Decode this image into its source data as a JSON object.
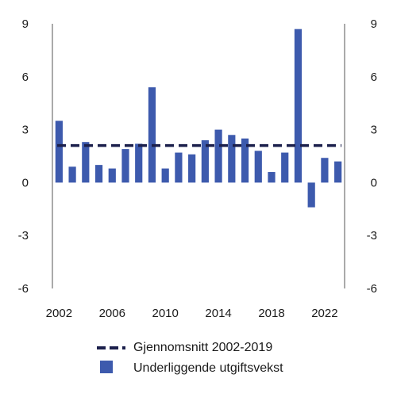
{
  "chart_data": {
    "type": "bar",
    "categories": [
      "2002",
      "2003",
      "2004",
      "2005",
      "2006",
      "2007",
      "2008",
      "2009",
      "2010",
      "2011",
      "2012",
      "2013",
      "2014",
      "2015",
      "2016",
      "2017",
      "2018",
      "2019",
      "2020",
      "2021",
      "2022",
      "2023"
    ],
    "series": [
      {
        "name": "Underliggende utgiftsvekst",
        "type": "bar",
        "color": "#3d5aad",
        "values": [
          3.5,
          0.9,
          2.3,
          1.0,
          0.8,
          1.9,
          2.2,
          5.4,
          0.8,
          1.7,
          1.6,
          2.4,
          3.0,
          2.7,
          2.5,
          1.8,
          0.6,
          1.7,
          8.7,
          -1.4,
          1.4,
          1.2
        ]
      },
      {
        "name": "Gjennomsnitt 2002-2019",
        "type": "line",
        "style": "dashed",
        "color": "#1b1f4b",
        "value": 2.1
      }
    ],
    "ylim": [
      -6,
      9
    ],
    "yticks": [
      "9",
      "6",
      "3",
      "0",
      "-3",
      "-6"
    ],
    "xticks": [
      "2002",
      "2006",
      "2010",
      "2014",
      "2018",
      "2022"
    ],
    "grid": false,
    "dual_y_axis": true,
    "legend_position": "bottom"
  },
  "legend": {
    "items": [
      {
        "label": "Gjennomsnitt 2002-2019",
        "icon": "dashed-line-icon"
      },
      {
        "label": "Underliggende utgiftsvekst",
        "icon": "bar-swatch-icon"
      }
    ]
  }
}
